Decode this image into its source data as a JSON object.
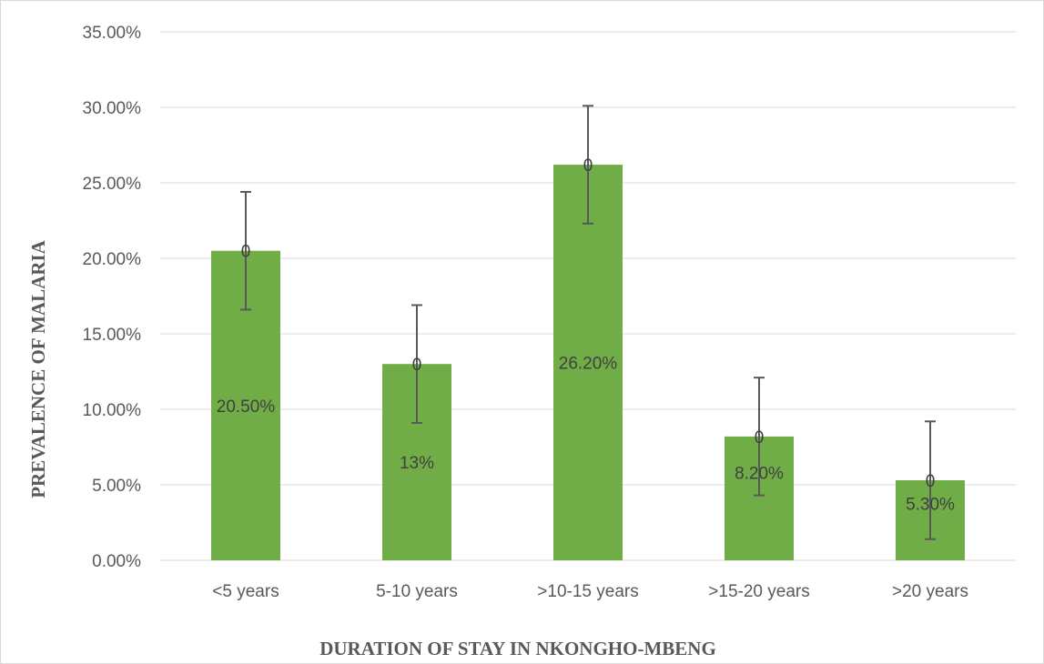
{
  "chart_data": {
    "type": "bar",
    "title": "",
    "xlabel": "DURATION OF STAY IN NKONGHO-MBENG",
    "ylabel": "PREVALENCE OF MALARIA",
    "ylim": [
      0,
      35
    ],
    "y_ticks": [
      0,
      5,
      10,
      15,
      20,
      25,
      30,
      35
    ],
    "y_tick_labels": [
      "0.00%",
      "5.00%",
      "10.00%",
      "15.00%",
      "20.00%",
      "25.00%",
      "30.00%",
      "35.00%"
    ],
    "grid": true,
    "legend": "none",
    "bar_color": "#70ad47",
    "categories": [
      "<5 years",
      "5-10 years",
      ">10-15 years",
      ">15-20 years",
      ">20 years"
    ],
    "values": [
      20.5,
      13,
      26.2,
      8.2,
      5.3
    ],
    "data_labels": [
      "20.50%",
      "13%",
      "26.20%",
      "8.20%",
      "5.30%"
    ],
    "error_bar_plus_minus": [
      3.9,
      3.9,
      3.9,
      3.9,
      3.9
    ],
    "error_marker_labels": [
      "0",
      "0",
      "0",
      "0",
      "0"
    ]
  }
}
